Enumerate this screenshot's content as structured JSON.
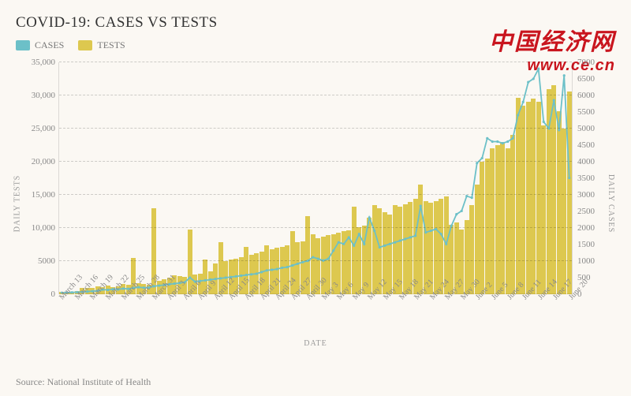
{
  "title": "COVID-19: CASES VS TESTS",
  "legend": {
    "cases": "CASES",
    "tests": "TESTS"
  },
  "colors": {
    "cases_line": "#6cc0c8",
    "tests_bar": "#ddc84f",
    "background": "#fbf8f3",
    "watermark": "#c9151e",
    "text_muted": "#888888"
  },
  "watermark": {
    "cn": "中国经济网",
    "url": "www.ce.cn"
  },
  "y_left": {
    "label": "DAILY TESTS",
    "ticks": [
      0,
      5000,
      10000,
      15000,
      20000,
      25000,
      30000,
      35000
    ],
    "tick_labels": [
      "0",
      "5000",
      "10,000",
      "15,000",
      "20,000",
      "25,000",
      "30,000",
      "35,000"
    ],
    "max": 35000
  },
  "y_right": {
    "label": "DAILY CASES",
    "ticks": [
      0,
      500,
      1000,
      1500,
      2000,
      2500,
      3000,
      3500,
      4000,
      4500,
      5000,
      5500,
      6000,
      6500,
      7000
    ],
    "max": 7000
  },
  "x": {
    "label": "DATE",
    "dates": [
      "March 13",
      "March 14",
      "March 15",
      "March 16",
      "March 17",
      "March 18",
      "March 19",
      "March 20",
      "March 21",
      "March 22",
      "March 23",
      "March 24",
      "March 25",
      "March 26",
      "March 27",
      "March 28",
      "March 29",
      "March 30",
      "March 31",
      "April 1",
      "April 2",
      "April 3",
      "April 4",
      "April 5",
      "April 6",
      "April 7",
      "April 8",
      "April 9",
      "April 10",
      "April 11",
      "April 12",
      "April 13",
      "April 14",
      "April 15",
      "April 16",
      "April 17",
      "April 18",
      "April 19",
      "April 20",
      "April 21",
      "April 22",
      "April 23",
      "April 24",
      "April 25",
      "April 26",
      "April 27",
      "April 28",
      "April 29",
      "April 30",
      "May 1",
      "May 2",
      "May 3",
      "May 4",
      "May 5",
      "May 6",
      "May 7",
      "May 8",
      "May 9",
      "May 10",
      "May 11",
      "May 12",
      "May 13",
      "May 14",
      "May 15",
      "May 16",
      "May 17",
      "May 18",
      "May 19",
      "May 20",
      "May 21",
      "May 22",
      "May 23",
      "May 24",
      "May 25",
      "May 26",
      "May 27",
      "May 28",
      "May 29",
      "May 30",
      "May 31",
      "June 1",
      "June 2",
      "June 3",
      "June 4",
      "June 5",
      "June 6",
      "June 7",
      "June 8",
      "June 9",
      "June 10",
      "June 11",
      "June 12",
      "June 13",
      "June 14",
      "June 15",
      "June 16",
      "June 17",
      "June 18",
      "June 19",
      "June 20"
    ],
    "label_every": 3
  },
  "tests": [
    300,
    350,
    400,
    450,
    900,
    950,
    1000,
    1200,
    1100,
    1300,
    1100,
    1200,
    1600,
    1400,
    5500,
    1700,
    1500,
    1400,
    13000,
    2000,
    2300,
    2500,
    2800,
    2700,
    2600,
    9800,
    3000,
    3100,
    5200,
    3400,
    4700,
    7800,
    5000,
    5200,
    5400,
    5600,
    7100,
    6000,
    6200,
    6400,
    7400,
    6800,
    7000,
    7200,
    7400,
    9500,
    7800,
    8000,
    11800,
    9000,
    8500,
    8700,
    8900,
    9100,
    9300,
    9500,
    9700,
    13200,
    10100,
    10300,
    11500,
    13400,
    13000,
    12400,
    12000,
    13500,
    13200,
    13600,
    13950,
    14400,
    16500,
    14000,
    13800,
    14000,
    14400,
    14800,
    10500,
    10800,
    9800,
    11200,
    13500,
    16500,
    20000,
    20500,
    22000,
    22500,
    23000,
    22000,
    24000,
    29600,
    28500,
    29000,
    29500,
    29000,
    25500,
    31000,
    31500,
    27600,
    25000,
    30600
  ],
  "cases": [
    20,
    27,
    34,
    40,
    50,
    60,
    70,
    80,
    120,
    110,
    130,
    125,
    150,
    140,
    170,
    190,
    175,
    180,
    220,
    240,
    260,
    280,
    300,
    320,
    340,
    480,
    360,
    380,
    400,
    420,
    440,
    460,
    480,
    500,
    520,
    540,
    560,
    580,
    600,
    650,
    700,
    720,
    740,
    780,
    800,
    850,
    900,
    950,
    990,
    1100,
    1050,
    1000,
    1050,
    1300,
    1550,
    1500,
    1700,
    1450,
    1800,
    1500,
    2300,
    1900,
    1400,
    1450,
    1500,
    1550,
    1600,
    1650,
    1700,
    1750,
    2650,
    1850,
    1900,
    1950,
    1800,
    1500,
    2050,
    2400,
    2500,
    2950,
    2900,
    3950,
    4100,
    4700,
    4600,
    4600,
    4550,
    4600,
    4700,
    5400,
    5800,
    6400,
    6500,
    6800,
    5200,
    5000,
    5850,
    4950,
    6600,
    3500
  ],
  "source": "Source: National Institute of Health"
}
